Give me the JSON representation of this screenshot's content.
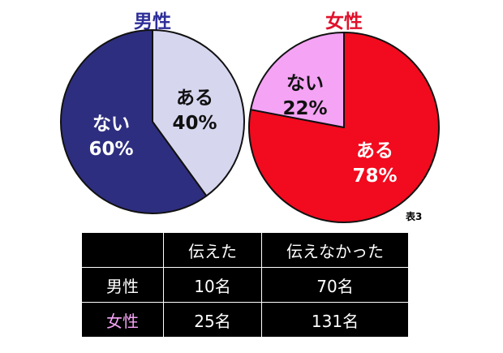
{
  "colors": {
    "male_no": "#2e2e80",
    "male_yes": "#d6d6ef",
    "female_yes": "#f20a1e",
    "female_no": "#f5a3f5",
    "male_title": "#2e2e99",
    "female_title": "#e0112b",
    "table_female_label": "#f5a3f5",
    "outline": "#111111"
  },
  "figure_label": "表3",
  "chart_data": [
    {
      "type": "pie",
      "title": "男性",
      "slices": [
        {
          "label": "ある",
          "percent": 40
        },
        {
          "label": "ない",
          "percent": 60
        }
      ]
    },
    {
      "type": "pie",
      "title": "女性",
      "slices": [
        {
          "label": "ある",
          "percent": 78
        },
        {
          "label": "ない",
          "percent": 22
        }
      ]
    }
  ],
  "table": {
    "header": [
      "",
      "伝えた",
      "伝えなかった"
    ],
    "rows": [
      {
        "label": "男性",
        "told": "10名",
        "not_told": "70名"
      },
      {
        "label": "女性",
        "told": "25名",
        "not_told": "131名"
      }
    ]
  }
}
